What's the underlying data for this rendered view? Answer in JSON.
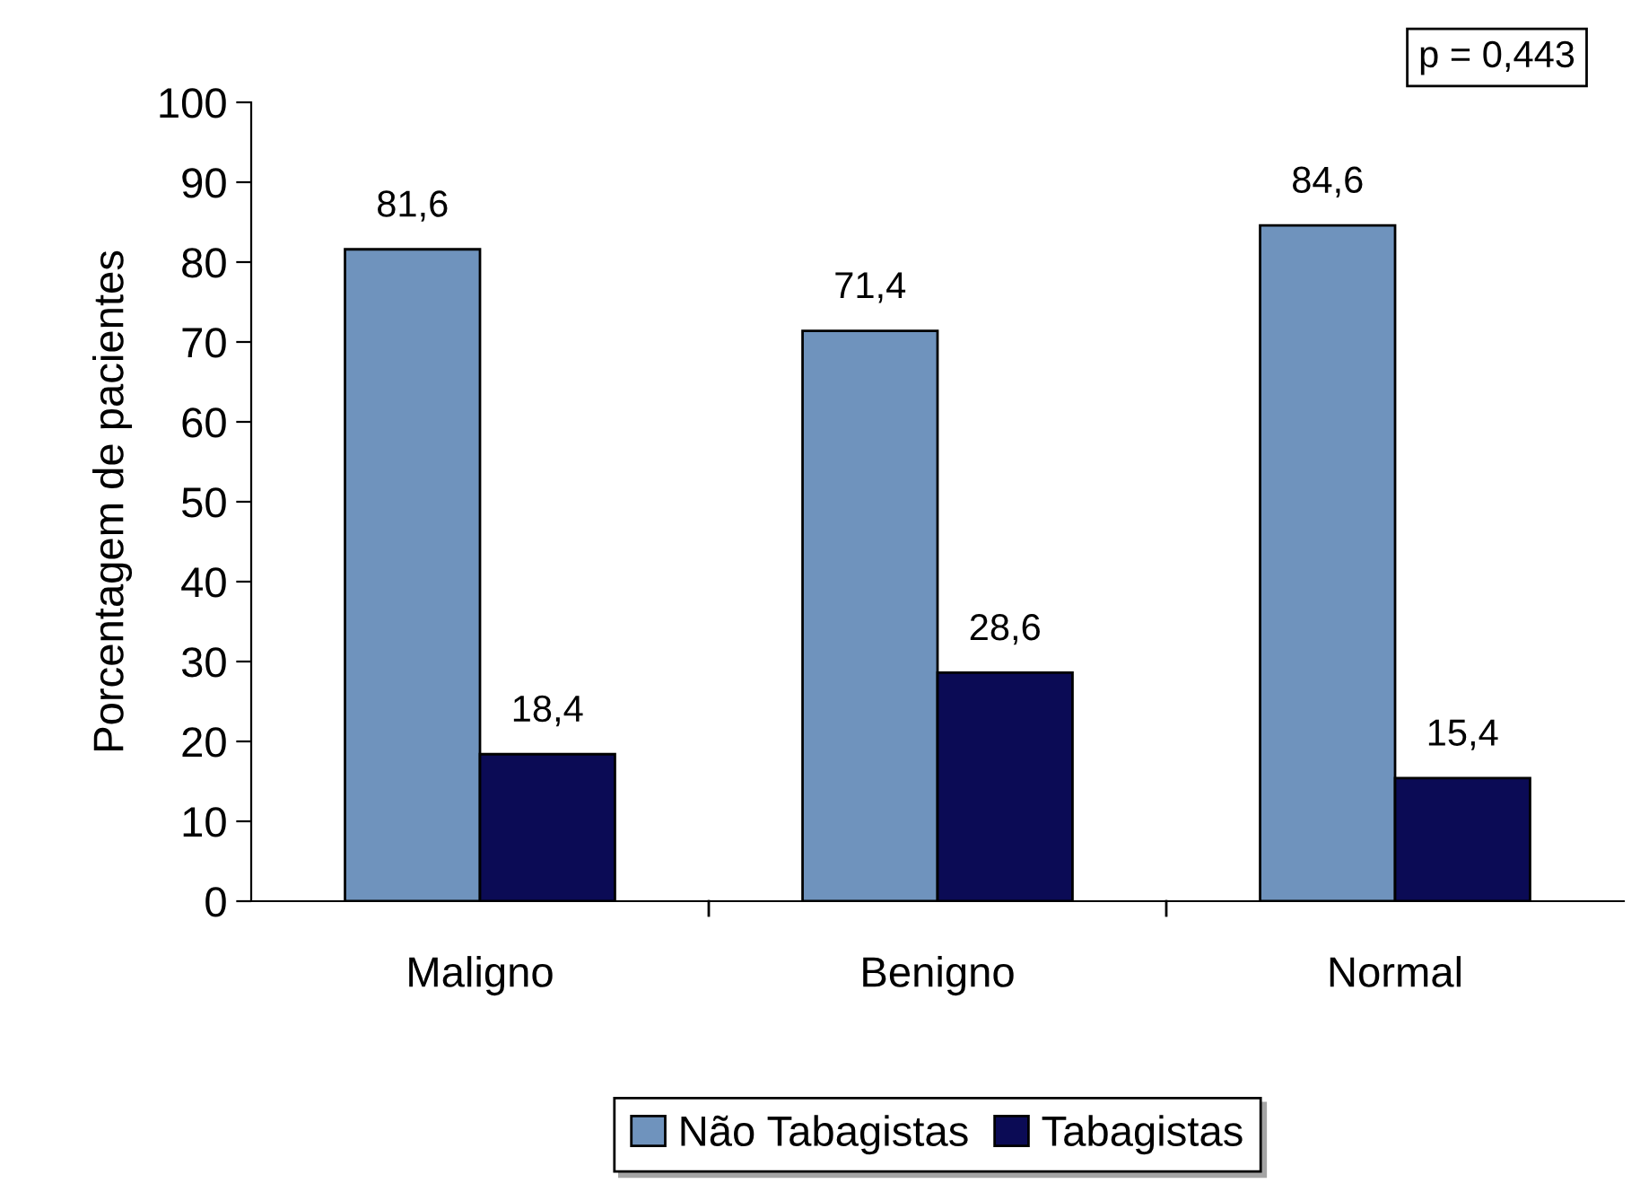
{
  "chart_data": {
    "type": "bar",
    "ylabel": "Porcentagem de pacientes",
    "categories": [
      "Maligno",
      "Benigno",
      "Normal"
    ],
    "series": [
      {
        "name": "Não Tabagistas",
        "color": "#6f93bd",
        "values": [
          81.6,
          71.4,
          84.6
        ],
        "value_labels": [
          "81,6",
          "71,4",
          "84,6"
        ]
      },
      {
        "name": "Tabagistas",
        "color": "#0b0b55",
        "values": [
          18.4,
          28.6,
          15.4
        ],
        "value_labels": [
          "18,4",
          "28,6",
          "15,4"
        ]
      }
    ],
    "ylim": [
      0,
      100
    ],
    "yticks": [
      0,
      10,
      20,
      30,
      40,
      50,
      60,
      70,
      80,
      90,
      100
    ],
    "legend": "bottom",
    "grid": false,
    "annotations": [
      "p = 0,443"
    ]
  }
}
